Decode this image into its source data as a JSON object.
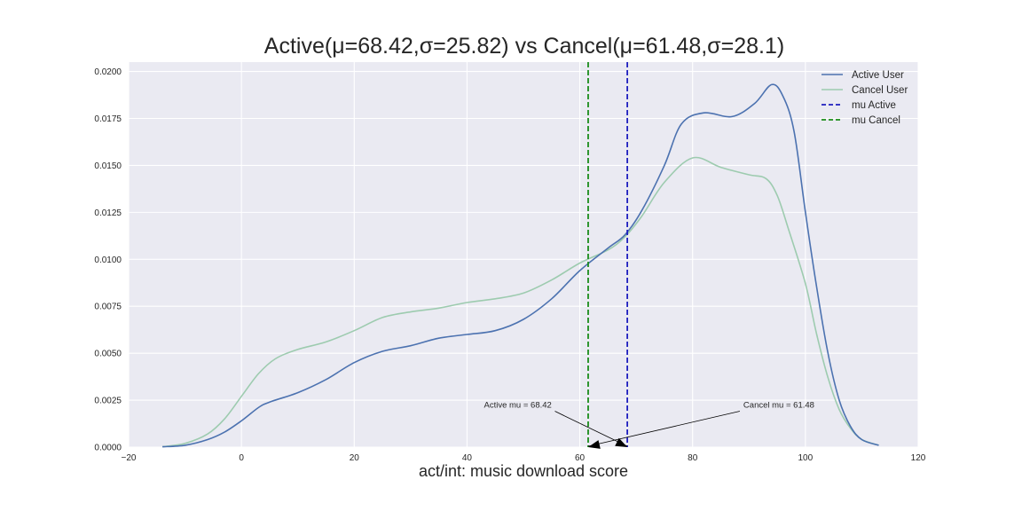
{
  "chart_data": {
    "type": "line",
    "title": "Active(μ=68.42,σ=25.82) vs Cancel(μ=61.48,σ=28.1)",
    "xlabel": "act/int: music download score",
    "ylabel": "",
    "xlim": [
      -20,
      120
    ],
    "ylim": [
      0,
      0.0205
    ],
    "x_ticks": [
      "−20",
      "0",
      "20",
      "40",
      "60",
      "80",
      "100",
      "120"
    ],
    "x_tick_values": [
      -20,
      0,
      20,
      40,
      60,
      80,
      100,
      120
    ],
    "y_ticks": [
      "0.0000",
      "0.0025",
      "0.0050",
      "0.0075",
      "0.0100",
      "0.0125",
      "0.0150",
      "0.0175",
      "0.0200"
    ],
    "y_tick_values": [
      0,
      0.0025,
      0.005,
      0.0075,
      0.01,
      0.0125,
      0.015,
      0.0175,
      0.02
    ],
    "grid": true,
    "legend_position": "top-right",
    "series": [
      {
        "name": "Active User",
        "color": "#4c72b0",
        "points": [
          [
            -14,
            2e-05
          ],
          [
            -10,
            0.0001
          ],
          [
            -6,
            0.0004
          ],
          [
            -3,
            0.0008
          ],
          [
            0,
            0.0014
          ],
          [
            3,
            0.0021
          ],
          [
            5,
            0.0024
          ],
          [
            10,
            0.0029
          ],
          [
            15,
            0.0036
          ],
          [
            20,
            0.0045
          ],
          [
            25,
            0.0051
          ],
          [
            30,
            0.0054
          ],
          [
            35,
            0.0058
          ],
          [
            40,
            0.006
          ],
          [
            45,
            0.0062
          ],
          [
            50,
            0.0068
          ],
          [
            55,
            0.0079
          ],
          [
            60,
            0.0094
          ],
          [
            65,
            0.0106
          ],
          [
            68,
            0.0113
          ],
          [
            71,
            0.0126
          ],
          [
            75,
            0.015
          ],
          [
            78,
            0.0172
          ],
          [
            82,
            0.0178
          ],
          [
            87,
            0.0176
          ],
          [
            91,
            0.0183
          ],
          [
            94,
            0.0193
          ],
          [
            96,
            0.0187
          ],
          [
            98,
            0.0168
          ],
          [
            100,
            0.0125
          ],
          [
            102,
            0.0085
          ],
          [
            104,
            0.005
          ],
          [
            106,
            0.0025
          ],
          [
            108,
            0.0011
          ],
          [
            110,
            0.0004
          ],
          [
            113,
            0.0001
          ]
        ]
      },
      {
        "name": "Cancel User",
        "color": "#9dcbaf",
        "points": [
          [
            -14,
            2e-05
          ],
          [
            -10,
            0.0002
          ],
          [
            -6,
            0.0007
          ],
          [
            -3,
            0.0015
          ],
          [
            0,
            0.0027
          ],
          [
            3,
            0.0039
          ],
          [
            6,
            0.0047
          ],
          [
            10,
            0.0052
          ],
          [
            15,
            0.0056
          ],
          [
            20,
            0.0062
          ],
          [
            25,
            0.0069
          ],
          [
            30,
            0.0072
          ],
          [
            35,
            0.0074
          ],
          [
            40,
            0.0077
          ],
          [
            45,
            0.0079
          ],
          [
            50,
            0.0082
          ],
          [
            55,
            0.0089
          ],
          [
            60,
            0.0098
          ],
          [
            65,
            0.0105
          ],
          [
            68,
            0.0112
          ],
          [
            71,
            0.0123
          ],
          [
            75,
            0.0141
          ],
          [
            80,
            0.0154
          ],
          [
            85,
            0.0149
          ],
          [
            90,
            0.0145
          ],
          [
            93,
            0.0143
          ],
          [
            95,
            0.0134
          ],
          [
            97,
            0.0116
          ],
          [
            100,
            0.0087
          ],
          [
            102,
            0.006
          ],
          [
            104,
            0.0037
          ],
          [
            106,
            0.002
          ],
          [
            108,
            0.001
          ],
          [
            110,
            0.0004
          ],
          [
            113,
            0.0001
          ]
        ]
      },
      {
        "name": "mu Active",
        "color": "#1f1fbf",
        "x": 68.42,
        "dashed": true
      },
      {
        "name": "mu Cancel",
        "color": "#1a8c1a",
        "x": 61.48,
        "dashed": true
      }
    ],
    "annotations": [
      {
        "text": "Active mu = 68.42",
        "text_x": 43,
        "text_y": 0.0021,
        "point_x": 68.42,
        "point_y": 0
      },
      {
        "text": "Cancel mu = 61.48",
        "text_x": 89,
        "text_y": 0.0021,
        "point_x": 61.48,
        "point_y": 0
      }
    ]
  }
}
